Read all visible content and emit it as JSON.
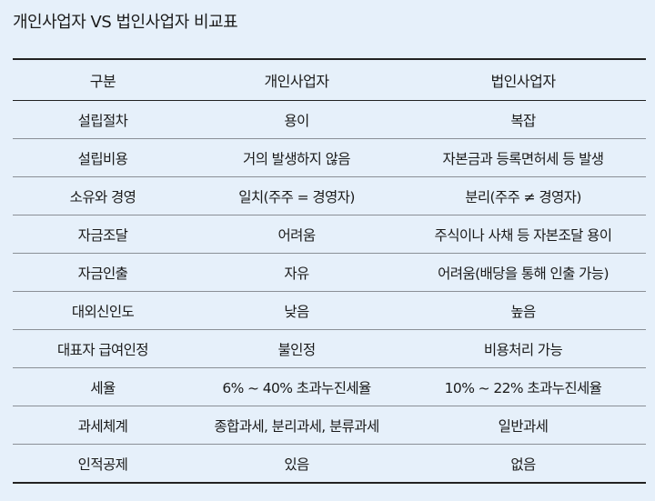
{
  "title": "개인사업자 VS 법인사업자 비교표",
  "columns": [
    "구분",
    "개인사업자",
    "법인사업자"
  ],
  "rows": [
    [
      "설립절차",
      "용이",
      "복잡"
    ],
    [
      "설립비용",
      "거의 발생하지 않음",
      "자본금과 등록면허세 등 발생"
    ],
    [
      "소유와 경영",
      "일치(주주 = 경영자)",
      "분리(주주 ≠ 경영자)"
    ],
    [
      "자금조달",
      "어려움",
      "주식이나 사채 등 자본조달 용이"
    ],
    [
      "자금인출",
      "자유",
      "어려움(배당을 통해 인출 가능)"
    ],
    [
      "대외신인도",
      "낮음",
      "높음"
    ],
    [
      "대표자 급여인정",
      "불인정",
      "비용처리 가능"
    ],
    [
      "세율",
      "6% ~ 40% 초과누진세율",
      "10% ~ 22% 초과누진세율"
    ],
    [
      "과세체계",
      "종합과세, 분리과세, 분류과세",
      "일반과세"
    ],
    [
      "인적공제",
      "있음",
      "없음"
    ]
  ]
}
